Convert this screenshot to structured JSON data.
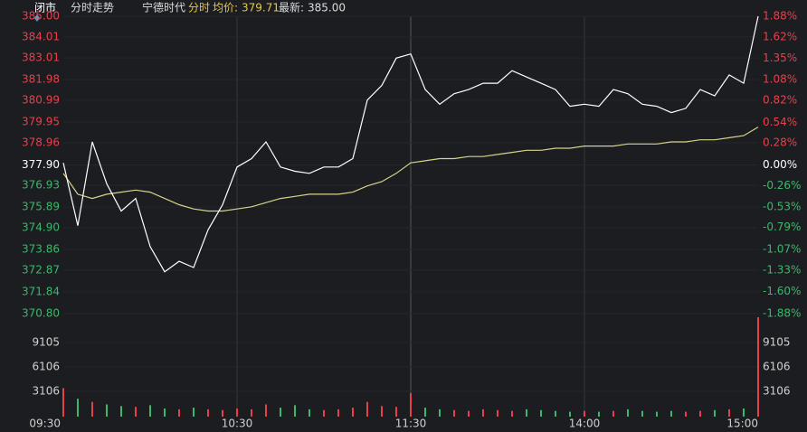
{
  "chart_data": {
    "type": "line",
    "header": {
      "status": "闭市",
      "tab": "分时走势",
      "stock": "宁德时代",
      "mode": "分时",
      "avg_label": "均价:",
      "avg_value": "379.71",
      "last_label": "最新:",
      "last_value": "385.00"
    },
    "x": [
      0,
      5,
      10,
      15,
      20,
      25,
      30,
      35,
      40,
      45,
      50,
      55,
      60,
      65,
      70,
      75,
      80,
      85,
      90,
      95,
      100,
      105,
      110,
      115,
      120,
      125,
      130,
      135,
      140,
      145,
      150,
      155,
      160,
      165,
      170,
      175,
      180,
      185,
      190,
      195,
      200,
      205,
      210,
      215,
      220,
      225,
      230,
      235,
      240
    ],
    "xlim": [
      0,
      240
    ],
    "xticks": [
      {
        "value": 0,
        "label": "09:30"
      },
      {
        "value": 60,
        "label": "10:30"
      },
      {
        "value": 120,
        "label": "11:30"
      },
      {
        "value": 180,
        "label": "14:00"
      },
      {
        "value": 240,
        "label": "15:00"
      }
    ],
    "ylim": [
      370.8,
      385
    ],
    "yticks": [
      {
        "value": 385,
        "label": "385.00"
      },
      384.01,
      383.01,
      381.98,
      380.99,
      379.95,
      378.96,
      {
        "value": 377.9,
        "label": "377.90"
      },
      376.93,
      375.89,
      {
        "value": 374.9,
        "label": "374.90"
      },
      373.86,
      372.87,
      371.84,
      {
        "value": 370.8,
        "label": "370.80"
      }
    ],
    "y2lim": [
      -1.88,
      1.88
    ],
    "y2ticks": [
      {
        "value": 1.88,
        "label": "1.88%"
      },
      {
        "value": 1.62,
        "label": "1.62%"
      },
      {
        "value": 1.35,
        "label": "1.35%"
      },
      {
        "value": 1.08,
        "label": "1.08%"
      },
      {
        "value": 0.82,
        "label": "0.82%"
      },
      {
        "value": 0.54,
        "label": "0.54%"
      },
      {
        "value": 0.28,
        "label": "0.28%"
      },
      {
        "value": 0,
        "label": "0.00%"
      },
      {
        "value": -0.26,
        "label": "-0.26%"
      },
      {
        "value": -0.53,
        "label": "-0.53%"
      },
      {
        "value": -0.79,
        "label": "-0.79%"
      },
      {
        "value": -1.07,
        "label": "-1.07%"
      },
      {
        "value": -1.33,
        "label": "-1.33%"
      },
      {
        "value": -1.6,
        "label": "-1.60%"
      },
      {
        "value": -1.88,
        "label": "-1.88%"
      }
    ],
    "up_color": "#e8404a",
    "down_color": "#3cb86a",
    "series": [
      {
        "color": "#ffffff",
        "values": [
          378,
          375,
          379,
          377,
          375.7,
          376.3,
          374,
          372.8,
          373.3,
          373,
          374.8,
          376,
          377.8,
          378.2,
          379,
          377.8,
          377.6,
          377.5,
          377.8,
          377.8,
          378.2,
          381,
          381.7,
          383,
          383.2,
          381.5,
          380.8,
          381.3,
          381.5,
          381.8,
          381.8,
          382.4,
          382.1,
          381.8,
          381.5,
          380.7,
          380.8,
          380.7,
          381.5,
          381.3,
          380.8,
          380.7,
          380.4,
          380.6,
          381.5,
          381.2,
          382.2,
          381.8,
          385
        ]
      },
      {
        "color": "#d6d48a",
        "values": [
          377.5,
          376.5,
          376.3,
          376.5,
          376.6,
          376.7,
          376.6,
          376.3,
          376,
          375.8,
          375.7,
          375.7,
          375.8,
          375.9,
          376.1,
          376.3,
          376.4,
          376.5,
          376.5,
          376.5,
          376.6,
          376.9,
          377.1,
          377.5,
          378,
          378.1,
          378.2,
          378.2,
          378.3,
          378.3,
          378.4,
          378.5,
          378.6,
          378.6,
          378.7,
          378.7,
          378.8,
          378.8,
          378.8,
          378.9,
          378.9,
          378.9,
          379,
          379,
          379.1,
          379.1,
          379.2,
          379.3,
          379.71
        ]
      }
    ],
    "volume": {
      "values": [
        3500,
        2200,
        1800,
        1500,
        1300,
        1200,
        1400,
        1000,
        900,
        1100,
        900,
        800,
        1000,
        900,
        1500,
        1100,
        1400,
        900,
        800,
        900,
        1100,
        1800,
        1300,
        1200,
        2900,
        1100,
        900,
        800,
        700,
        900,
        800,
        700,
        900,
        800,
        700,
        600,
        700,
        600,
        700,
        900,
        700,
        600,
        700,
        600,
        700,
        800,
        900,
        1000,
        12200
      ],
      "ylim": [
        0,
        12640
      ],
      "yticks": [
        3106,
        6106,
        9105
      ]
    }
  }
}
